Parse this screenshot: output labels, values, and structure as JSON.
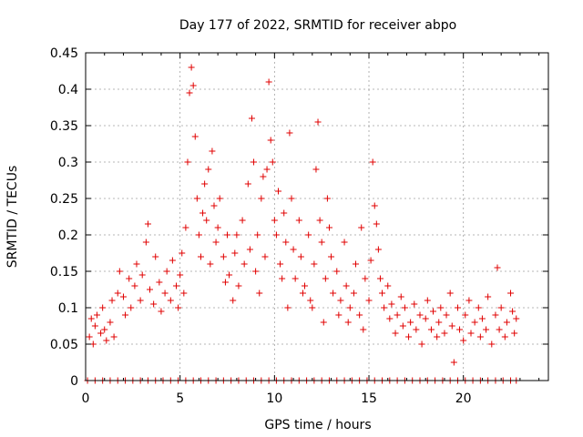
{
  "chart_data": {
    "type": "scatter",
    "title": "Day 177 of 2022, SRMTID for receiver abpo",
    "xlabel": "GPS time / hours",
    "ylabel": "SRMTID / TECUs",
    "xlim": [
      0,
      24.5
    ],
    "ylim": [
      0,
      0.45
    ],
    "x_ticks": [
      0,
      5,
      10,
      15,
      20
    ],
    "x_tick_labels": [
      "0",
      "5",
      "10",
      "15",
      "20"
    ],
    "y_ticks": [
      0,
      0.05,
      0.1,
      0.15,
      0.2,
      0.25,
      0.3,
      0.35,
      0.4,
      0.45
    ],
    "y_tick_labels": [
      "0",
      "0.05",
      "0.1",
      "0.15",
      "0.2",
      "0.25",
      "0.3",
      "0.35",
      "0.4",
      "0.45"
    ],
    "grid": true,
    "legend": "none",
    "marker": "plus",
    "series": [
      {
        "name": "SRMTID",
        "color": "#e00000",
        "points": [
          [
            0.2,
            0.06
          ],
          [
            0.3,
            0.085
          ],
          [
            0.4,
            0.05
          ],
          [
            0.5,
            0.075
          ],
          [
            0.6,
            0.09
          ],
          [
            0.8,
            0.065
          ],
          [
            0.9,
            0.1
          ],
          [
            1.0,
            0.07
          ],
          [
            1.1,
            0.055
          ],
          [
            1.3,
            0.08
          ],
          [
            1.4,
            0.11
          ],
          [
            1.5,
            0.06
          ],
          [
            1.7,
            0.12
          ],
          [
            1.8,
            0.15
          ],
          [
            2.0,
            0.115
          ],
          [
            2.1,
            0.09
          ],
          [
            2.3,
            0.14
          ],
          [
            2.4,
            0.1
          ],
          [
            2.6,
            0.13
          ],
          [
            2.7,
            0.16
          ],
          [
            2.9,
            0.11
          ],
          [
            3.0,
            0.145
          ],
          [
            3.2,
            0.19
          ],
          [
            3.3,
            0.215
          ],
          [
            3.4,
            0.125
          ],
          [
            3.6,
            0.105
          ],
          [
            3.7,
            0.17
          ],
          [
            3.9,
            0.135
          ],
          [
            4.0,
            0.095
          ],
          [
            4.2,
            0.12
          ],
          [
            4.3,
            0.15
          ],
          [
            4.5,
            0.11
          ],
          [
            4.6,
            0.165
          ],
          [
            4.8,
            0.13
          ],
          [
            4.9,
            0.1
          ],
          [
            5.0,
            0.145
          ],
          [
            5.1,
            0.175
          ],
          [
            5.2,
            0.12
          ],
          [
            5.3,
            0.21
          ],
          [
            5.4,
            0.3
          ],
          [
            5.5,
            0.395
          ],
          [
            5.6,
            0.43
          ],
          [
            5.7,
            0.405
          ],
          [
            5.8,
            0.335
          ],
          [
            5.9,
            0.25
          ],
          [
            6.0,
            0.2
          ],
          [
            6.1,
            0.17
          ],
          [
            6.2,
            0.23
          ],
          [
            6.3,
            0.27
          ],
          [
            6.4,
            0.22
          ],
          [
            6.5,
            0.29
          ],
          [
            6.6,
            0.16
          ],
          [
            6.7,
            0.315
          ],
          [
            6.8,
            0.24
          ],
          [
            6.9,
            0.19
          ],
          [
            7.0,
            0.21
          ],
          [
            7.1,
            0.25
          ],
          [
            7.3,
            0.17
          ],
          [
            7.4,
            0.135
          ],
          [
            7.5,
            0.2
          ],
          [
            7.6,
            0.145
          ],
          [
            7.8,
            0.11
          ],
          [
            7.9,
            0.175
          ],
          [
            8.0,
            0.2
          ],
          [
            8.1,
            0.13
          ],
          [
            8.3,
            0.22
          ],
          [
            8.4,
            0.16
          ],
          [
            8.6,
            0.27
          ],
          [
            8.7,
            0.18
          ],
          [
            8.8,
            0.36
          ],
          [
            8.9,
            0.3
          ],
          [
            9.0,
            0.15
          ],
          [
            9.1,
            0.2
          ],
          [
            9.2,
            0.12
          ],
          [
            9.3,
            0.25
          ],
          [
            9.4,
            0.28
          ],
          [
            9.5,
            0.17
          ],
          [
            9.6,
            0.29
          ],
          [
            9.7,
            0.41
          ],
          [
            9.8,
            0.33
          ],
          [
            9.9,
            0.3
          ],
          [
            10.0,
            0.22
          ],
          [
            10.1,
            0.2
          ],
          [
            10.2,
            0.26
          ],
          [
            10.3,
            0.16
          ],
          [
            10.4,
            0.14
          ],
          [
            10.5,
            0.23
          ],
          [
            10.6,
            0.19
          ],
          [
            10.7,
            0.1
          ],
          [
            10.8,
            0.34
          ],
          [
            10.9,
            0.25
          ],
          [
            11.0,
            0.18
          ],
          [
            11.1,
            0.14
          ],
          [
            11.3,
            0.22
          ],
          [
            11.4,
            0.17
          ],
          [
            11.5,
            0.12
          ],
          [
            11.6,
            0.13
          ],
          [
            11.8,
            0.2
          ],
          [
            11.9,
            0.11
          ],
          [
            12.0,
            0.1
          ],
          [
            12.1,
            0.16
          ],
          [
            12.2,
            0.29
          ],
          [
            12.3,
            0.355
          ],
          [
            12.4,
            0.22
          ],
          [
            12.5,
            0.19
          ],
          [
            12.6,
            0.08
          ],
          [
            12.7,
            0.14
          ],
          [
            12.8,
            0.25
          ],
          [
            12.9,
            0.21
          ],
          [
            13.0,
            0.17
          ],
          [
            13.1,
            0.12
          ],
          [
            13.3,
            0.15
          ],
          [
            13.4,
            0.09
          ],
          [
            13.5,
            0.11
          ],
          [
            13.7,
            0.19
          ],
          [
            13.8,
            0.13
          ],
          [
            13.9,
            0.08
          ],
          [
            14.0,
            0.1
          ],
          [
            14.2,
            0.12
          ],
          [
            14.3,
            0.16
          ],
          [
            14.5,
            0.09
          ],
          [
            14.6,
            0.21
          ],
          [
            14.7,
            0.07
          ],
          [
            14.8,
            0.14
          ],
          [
            15.0,
            0.11
          ],
          [
            15.1,
            0.165
          ],
          [
            15.2,
            0.3
          ],
          [
            15.3,
            0.24
          ],
          [
            15.4,
            0.215
          ],
          [
            15.5,
            0.18
          ],
          [
            15.6,
            0.14
          ],
          [
            15.7,
            0.12
          ],
          [
            15.8,
            0.1
          ],
          [
            16.0,
            0.13
          ],
          [
            16.1,
            0.085
          ],
          [
            16.2,
            0.105
          ],
          [
            16.4,
            0.065
          ],
          [
            16.5,
            0.09
          ],
          [
            16.7,
            0.115
          ],
          [
            16.8,
            0.075
          ],
          [
            16.9,
            0.1
          ],
          [
            17.1,
            0.06
          ],
          [
            17.2,
            0.08
          ],
          [
            17.4,
            0.105
          ],
          [
            17.5,
            0.07
          ],
          [
            17.7,
            0.09
          ],
          [
            17.8,
            0.05
          ],
          [
            18.0,
            0.085
          ],
          [
            18.1,
            0.11
          ],
          [
            18.3,
            0.07
          ],
          [
            18.4,
            0.095
          ],
          [
            18.6,
            0.06
          ],
          [
            18.7,
            0.08
          ],
          [
            18.8,
            0.1
          ],
          [
            19.0,
            0.065
          ],
          [
            19.1,
            0.09
          ],
          [
            19.3,
            0.12
          ],
          [
            19.4,
            0.075
          ],
          [
            19.5,
            0.025
          ],
          [
            19.7,
            0.1
          ],
          [
            19.8,
            0.07
          ],
          [
            20.0,
            0.055
          ],
          [
            20.1,
            0.09
          ],
          [
            20.3,
            0.11
          ],
          [
            20.4,
            0.065
          ],
          [
            20.6,
            0.08
          ],
          [
            20.8,
            0.1
          ],
          [
            20.9,
            0.06
          ],
          [
            21.0,
            0.085
          ],
          [
            21.2,
            0.07
          ],
          [
            21.3,
            0.115
          ],
          [
            21.5,
            0.05
          ],
          [
            21.7,
            0.09
          ],
          [
            21.8,
            0.155
          ],
          [
            21.9,
            0.07
          ],
          [
            22.0,
            0.1
          ],
          [
            22.2,
            0.06
          ],
          [
            22.3,
            0.08
          ],
          [
            22.5,
            0.12
          ],
          [
            22.6,
            0.095
          ],
          [
            22.7,
            0.065
          ],
          [
            22.8,
            0.085
          ],
          [
            0.1,
            0.0
          ],
          [
            0.5,
            0.0
          ],
          [
            0.9,
            0.0
          ],
          [
            1.3,
            0.0
          ],
          [
            1.7,
            0.0
          ],
          [
            2.1,
            0.0
          ],
          [
            2.5,
            0.0
          ],
          [
            2.9,
            0.0
          ],
          [
            3.3,
            0.0
          ],
          [
            3.7,
            0.0
          ],
          [
            4.1,
            0.0
          ],
          [
            4.5,
            0.0
          ],
          [
            4.9,
            0.0
          ],
          [
            5.3,
            0.0
          ],
          [
            5.7,
            0.0
          ],
          [
            6.1,
            0.0
          ],
          [
            6.5,
            0.0
          ],
          [
            6.9,
            0.0
          ],
          [
            7.3,
            0.0
          ],
          [
            7.7,
            0.0
          ],
          [
            8.1,
            0.0
          ],
          [
            8.5,
            0.0
          ],
          [
            8.9,
            0.0
          ],
          [
            9.3,
            0.0
          ],
          [
            9.7,
            0.0
          ],
          [
            10.1,
            0.0
          ],
          [
            10.5,
            0.0
          ],
          [
            10.9,
            0.0
          ],
          [
            11.3,
            0.0
          ],
          [
            11.7,
            0.0
          ],
          [
            12.1,
            0.0
          ],
          [
            12.5,
            0.0
          ],
          [
            12.9,
            0.0
          ],
          [
            13.3,
            0.0
          ],
          [
            13.7,
            0.0
          ],
          [
            14.1,
            0.0
          ],
          [
            14.5,
            0.0
          ],
          [
            14.9,
            0.0
          ],
          [
            15.3,
            0.0
          ],
          [
            15.7,
            0.0
          ],
          [
            16.1,
            0.0
          ],
          [
            16.5,
            0.0
          ],
          [
            16.9,
            0.0
          ],
          [
            17.3,
            0.0
          ],
          [
            17.7,
            0.0
          ],
          [
            18.1,
            0.0
          ],
          [
            18.5,
            0.0
          ],
          [
            18.9,
            0.0
          ],
          [
            19.3,
            0.0
          ],
          [
            19.7,
            0.0
          ],
          [
            20.1,
            0.0
          ],
          [
            20.5,
            0.0
          ],
          [
            20.9,
            0.0
          ],
          [
            21.3,
            0.0
          ],
          [
            21.7,
            0.0
          ],
          [
            22.1,
            0.0
          ],
          [
            22.5,
            0.0
          ],
          [
            22.8,
            0.0
          ]
        ]
      }
    ]
  }
}
